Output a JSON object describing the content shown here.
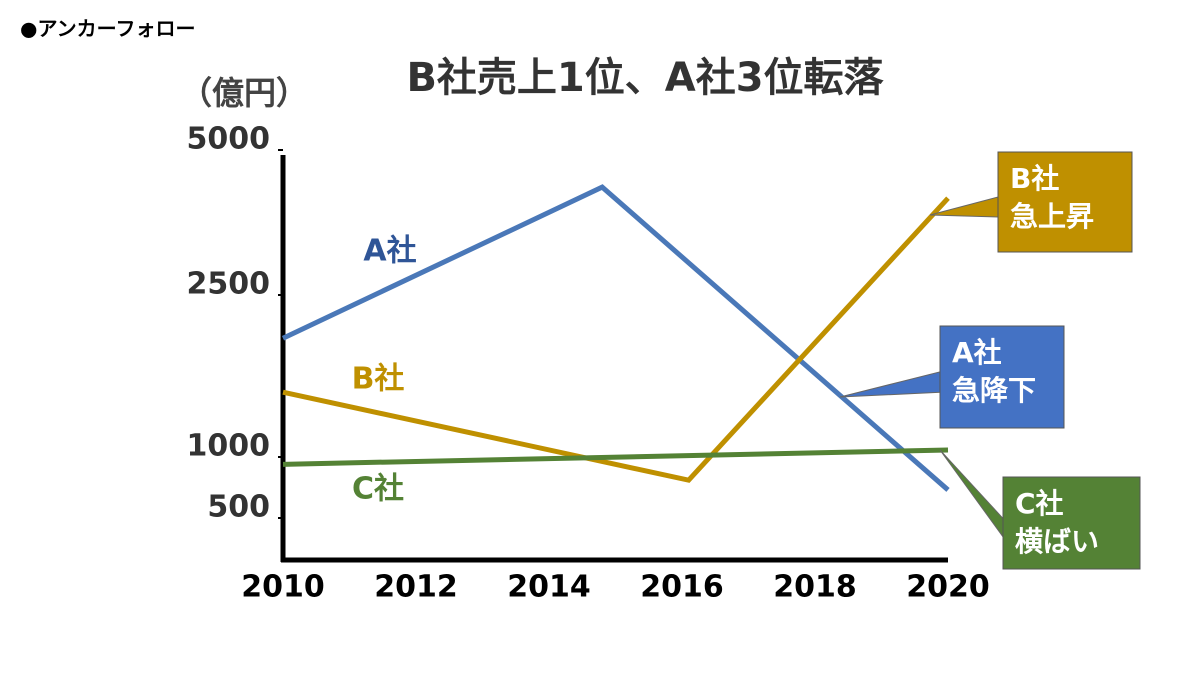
{
  "header": "●アンカーフォロー",
  "chart_data": {
    "type": "line",
    "title": "B社売上1位、A社3位転落",
    "y_label": "（億円）",
    "xlim": [
      2010,
      2020
    ],
    "xticks": [
      2010,
      2012,
      2014,
      2016,
      2018,
      2020
    ],
    "ylim": [
      0,
      5000
    ],
    "yticks": [
      500,
      1000,
      2500,
      5000
    ],
    "y_scale": "piecewise",
    "series": [
      {
        "name": "A社",
        "color": "#4a78b8",
        "label_color": "#2f5597",
        "x": [
          2010,
          2014.8,
          2020
        ],
        "values": [
          2100,
          4360,
          730
        ]
      },
      {
        "name": "B社",
        "color": "#bf9000",
        "label_color": "#bf9000",
        "x": [
          2010,
          2016.1,
          2020
        ],
        "values": [
          1600,
          810,
          4170
        ]
      },
      {
        "name": "C社",
        "color": "#548235",
        "label_color": "#548235",
        "x": [
          2010,
          2020
        ],
        "values": [
          940,
          1065
        ]
      }
    ],
    "callouts": [
      {
        "lines": [
          "B社",
          "急上昇"
        ],
        "color": "#bf9000"
      },
      {
        "lines": [
          "A社",
          "急降下"
        ],
        "color": "#4472c4"
      },
      {
        "lines": [
          "C社",
          "横ばい"
        ],
        "color": "#548235"
      }
    ]
  }
}
